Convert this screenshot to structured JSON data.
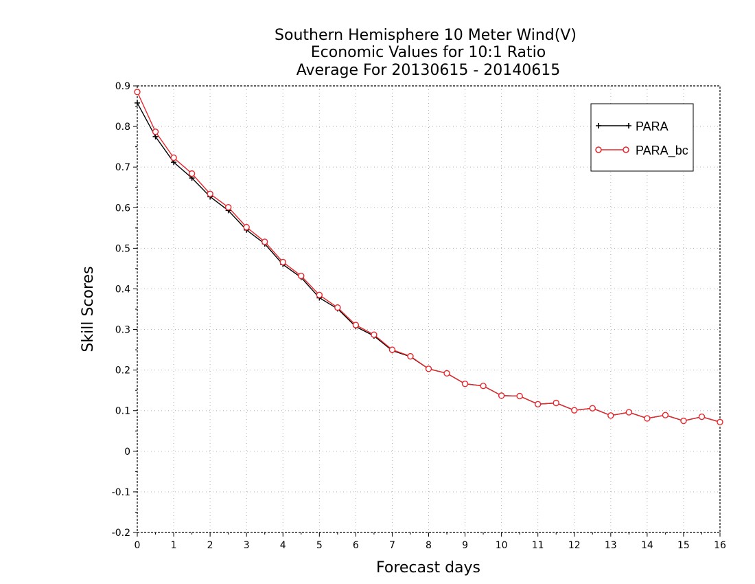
{
  "chart_data": {
    "type": "line",
    "title": [
      "Southern Hemisphere 10 Meter Wind(V)",
      "Economic Values for 10:1 Ratio",
      "Average For 20130615 - 20140615"
    ],
    "xlabel": "Forecast days",
    "ylabel": "Skill Scores",
    "xlim": [
      0,
      16
    ],
    "ylim": [
      -0.2,
      0.9
    ],
    "xticks": [
      "0",
      "1",
      "2",
      "3",
      "4",
      "5",
      "6",
      "7",
      "8",
      "9",
      "10",
      "11",
      "12",
      "13",
      "14",
      "15",
      "16"
    ],
    "yticks": [
      "-0.2",
      "-0.1",
      "0",
      "0.1",
      "0.2",
      "0.3",
      "0.4",
      "0.5",
      "0.6",
      "0.7",
      "0.8",
      "0.9"
    ],
    "grid": true,
    "legend_position": "top-right",
    "x": [
      0,
      0.5,
      1,
      1.5,
      2,
      2.5,
      3,
      3.5,
      4,
      4.5,
      5,
      5.5,
      6,
      6.5,
      7,
      7.5,
      8,
      8.5,
      9,
      9.5,
      10,
      10.5,
      11,
      11.5,
      12,
      12.5,
      13,
      13.5,
      14,
      14.5,
      15,
      15.5,
      16
    ],
    "series": [
      {
        "name": "PARA",
        "color": "#000000",
        "marker": "plus",
        "values": [
          0.858,
          0.775,
          0.712,
          0.673,
          0.627,
          0.593,
          0.545,
          0.511,
          0.46,
          0.428,
          0.378,
          0.351,
          0.307,
          0.284,
          0.248,
          0.233,
          0.203,
          0.192,
          0.166,
          0.161,
          0.137,
          0.136,
          0.116,
          0.119,
          0.101,
          0.106,
          0.088,
          0.096,
          0.081,
          0.089,
          0.075,
          0.085,
          0.072
        ]
      },
      {
        "name": "PARA_bc",
        "color": "#e8262b",
        "marker": "circle",
        "values": [
          0.885,
          0.787,
          0.723,
          0.684,
          0.634,
          0.601,
          0.552,
          0.516,
          0.466,
          0.432,
          0.385,
          0.354,
          0.311,
          0.287,
          0.25,
          0.234,
          0.203,
          0.192,
          0.166,
          0.161,
          0.137,
          0.136,
          0.116,
          0.119,
          0.101,
          0.106,
          0.088,
          0.096,
          0.081,
          0.089,
          0.075,
          0.085,
          0.072
        ]
      }
    ]
  }
}
